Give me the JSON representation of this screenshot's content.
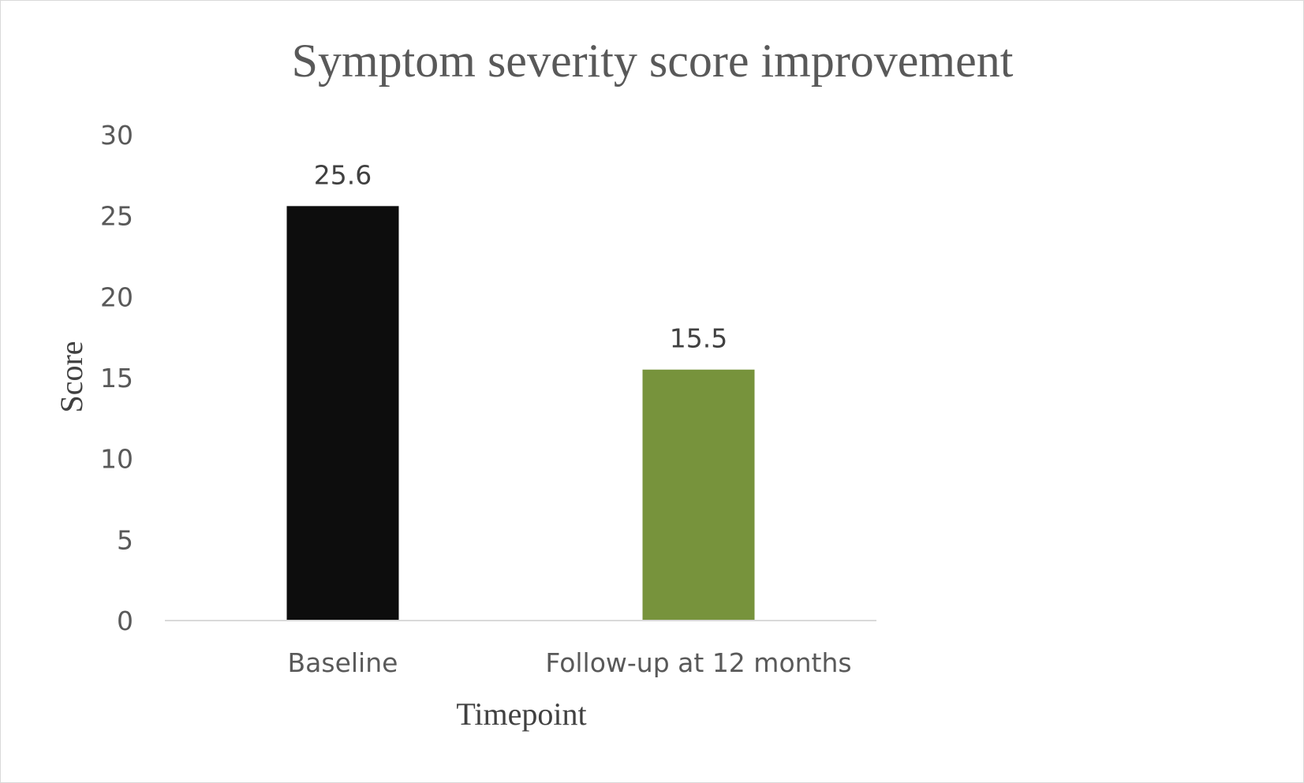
{
  "chart_data": {
    "type": "bar",
    "title": "Symptom severity score improvement",
    "xlabel": "Timepoint",
    "ylabel": "Score",
    "categories": [
      "Baseline",
      "Follow-up at 12 months"
    ],
    "values": [
      25.6,
      15.5
    ],
    "data_labels": [
      "25.6",
      "15.5"
    ],
    "bar_colors": [
      "#0d0d0d",
      "#77933c"
    ],
    "ylim": [
      0,
      30
    ],
    "yticks": [
      0,
      5,
      10,
      15,
      20,
      25,
      30
    ],
    "ytick_labels": [
      "0",
      "5",
      "10",
      "15",
      "20",
      "25",
      "30"
    ],
    "grid": false,
    "legend": "none"
  },
  "colors": {
    "title": "#595959",
    "axis_title": "#404040",
    "tick": "#595959",
    "data_label": "#404040",
    "axis_line": "#d9d9d9",
    "background": "#ffffff"
  }
}
